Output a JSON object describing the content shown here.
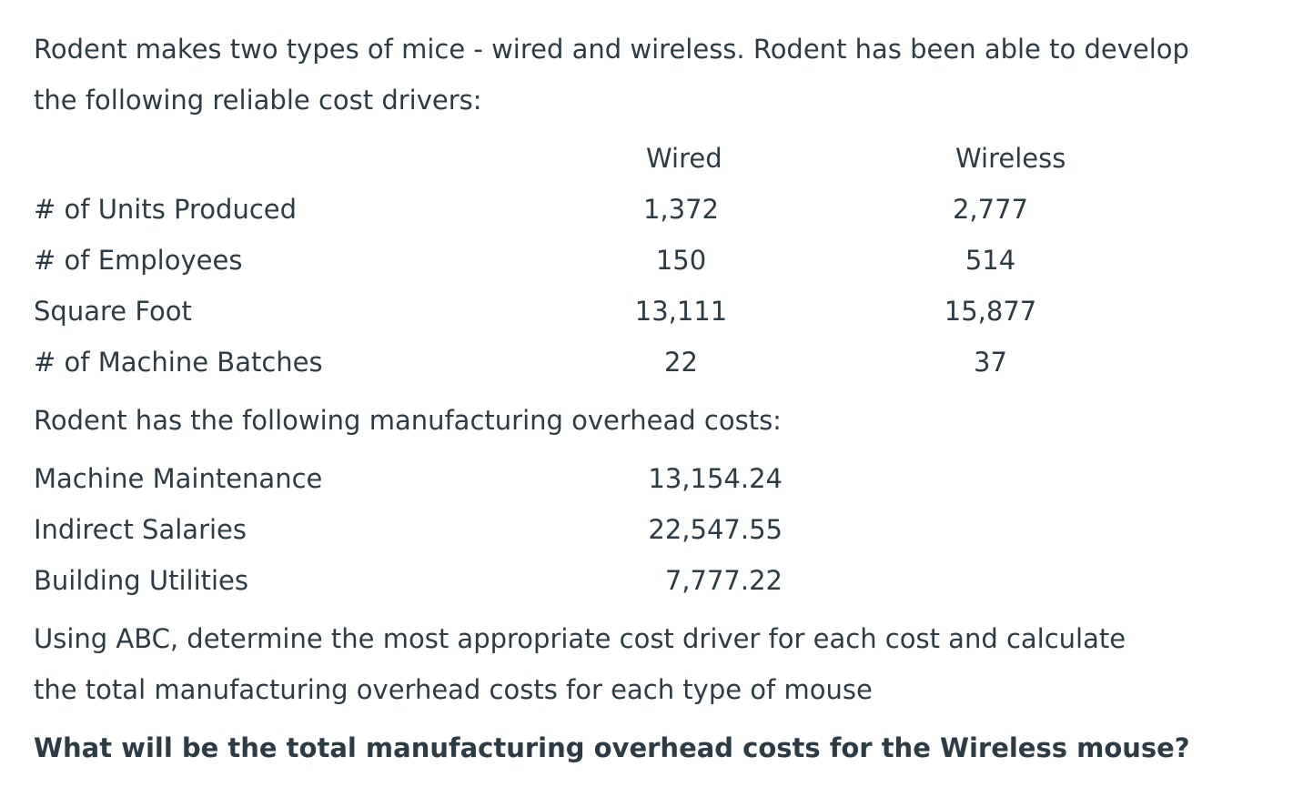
{
  "intro": {
    "line1": "Rodent makes two types of mice - wired and wireless.  Rodent has been able to develop",
    "line2": "the following reliable cost drivers:"
  },
  "drivers": {
    "headers": [
      "Wired",
      "Wireless"
    ],
    "rows": [
      [
        "# of Units Produced",
        "1,372",
        "2,777"
      ],
      [
        "# of Employees",
        "150",
        "514"
      ],
      [
        "Square Foot",
        "13,111",
        "15,877"
      ],
      [
        "# of Machine Batches",
        "22",
        "37"
      ]
    ]
  },
  "costs_intro": "Rodent has the following manufacturing overhead costs:",
  "costs": {
    "rows": [
      [
        "Machine Maintenance",
        "13,154.24"
      ],
      [
        "Indirect Salaries",
        "22,547.55"
      ],
      [
        "Building Utilities",
        "7,777.22"
      ]
    ]
  },
  "instruction": {
    "line1": "Using ABC, determine the most appropriate cost driver for each cost and calculate",
    "line2": "the total manufacturing overhead costs for each type of mouse"
  },
  "question": "What will be the total manufacturing overhead costs for the Wireless mouse?"
}
